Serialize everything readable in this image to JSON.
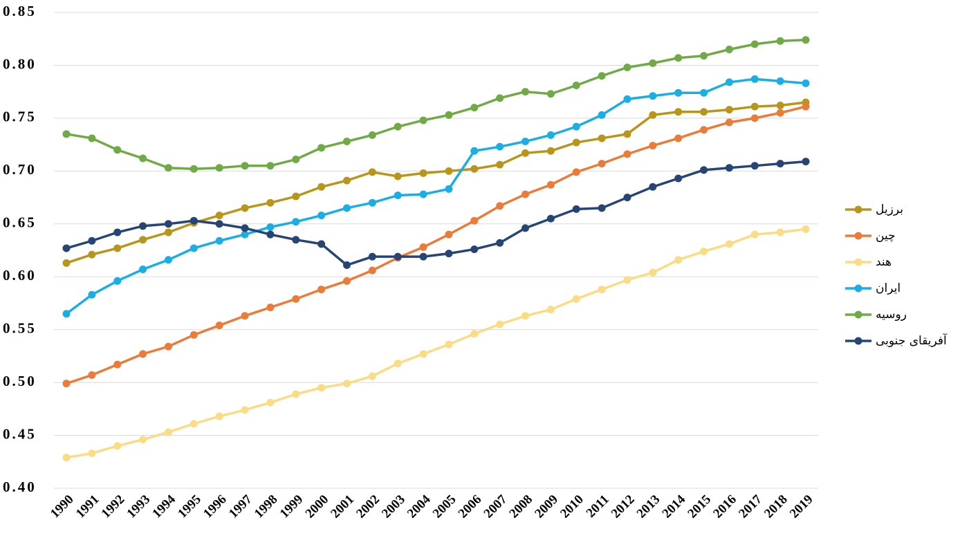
{
  "chart_data": {
    "type": "line",
    "x": [
      "1990",
      "1991",
      "1992",
      "1993",
      "1994",
      "1995",
      "1996",
      "1997",
      "1998",
      "1999",
      "2000",
      "2001",
      "2002",
      "2003",
      "2004",
      "2005",
      "2006",
      "2007",
      "2008",
      "2009",
      "2010",
      "2011",
      "2012",
      "2013",
      "2014",
      "2015",
      "2016",
      "2017",
      "2018",
      "2019"
    ],
    "ylim": [
      0.4,
      0.85
    ],
    "yticks": [
      {
        "value": 0.4,
        "label": "0.40"
      },
      0.45,
      {
        "value": 0.5,
        "label": "0.50"
      },
      0.55,
      {
        "value": 0.6,
        "label": "0.60"
      },
      0.65,
      {
        "value": 0.7,
        "label": "0.70"
      },
      0.75,
      {
        "value": 0.8,
        "label": "0.80"
      },
      0.85
    ],
    "grid": true,
    "legend": "right",
    "series": [
      {
        "name": "برزیل",
        "color": "#b8961b",
        "values": [
          0.613,
          0.621,
          0.627,
          0.635,
          0.642,
          0.651,
          0.658,
          0.665,
          0.67,
          0.676,
          0.685,
          0.691,
          0.699,
          0.695,
          0.698,
          0.7,
          0.702,
          0.706,
          0.717,
          0.719,
          0.727,
          0.731,
          0.735,
          0.753,
          0.756,
          0.756,
          0.758,
          0.761,
          0.762,
          0.765
        ]
      },
      {
        "name": "چین",
        "color": "#ea7c39",
        "values": [
          0.499,
          0.507,
          0.517,
          0.527,
          0.534,
          0.545,
          0.554,
          0.563,
          0.571,
          0.579,
          0.588,
          0.596,
          0.606,
          0.618,
          0.628,
          0.64,
          0.653,
          0.667,
          0.678,
          0.687,
          0.699,
          0.707,
          0.716,
          0.724,
          0.731,
          0.739,
          0.746,
          0.75,
          0.755,
          0.761
        ]
      },
      {
        "name": "هند",
        "color": "#f9dc84",
        "values": [
          0.429,
          0.433,
          0.44,
          0.446,
          0.453,
          0.461,
          0.468,
          0.474,
          0.481,
          0.489,
          0.495,
          0.499,
          0.506,
          0.518,
          0.527,
          0.536,
          0.546,
          0.555,
          0.563,
          0.569,
          0.579,
          0.588,
          0.597,
          0.604,
          0.616,
          0.624,
          0.631,
          0.64,
          0.642,
          0.645
        ]
      },
      {
        "name": "ایران",
        "color": "#1aaee5",
        "values": [
          0.565,
          0.583,
          0.596,
          0.607,
          0.616,
          0.627,
          0.634,
          0.64,
          0.647,
          0.652,
          0.658,
          0.665,
          0.67,
          0.677,
          0.678,
          0.683,
          0.719,
          0.723,
          0.728,
          0.734,
          0.742,
          0.753,
          0.768,
          0.771,
          0.774,
          0.774,
          0.784,
          0.787,
          0.785,
          0.783
        ]
      },
      {
        "name": "روسیه",
        "color": "#6faa46",
        "values": [
          0.735,
          0.731,
          0.72,
          0.712,
          0.703,
          0.702,
          0.703,
          0.705,
          0.705,
          0.711,
          0.722,
          0.728,
          0.734,
          0.742,
          0.748,
          0.753,
          0.76,
          0.769,
          0.775,
          0.773,
          0.781,
          0.79,
          0.798,
          0.802,
          0.807,
          0.809,
          0.815,
          0.82,
          0.823,
          0.824
        ]
      },
      {
        "name": "آفریقای جنوبی",
        "color": "#264575",
        "values": [
          0.627,
          0.634,
          0.642,
          0.648,
          0.65,
          0.653,
          0.65,
          0.646,
          0.64,
          0.635,
          0.631,
          0.611,
          0.619,
          0.619,
          0.619,
          0.622,
          0.626,
          0.632,
          0.646,
          0.655,
          0.664,
          0.665,
          0.675,
          0.685,
          0.693,
          0.701,
          0.703,
          0.705,
          0.707,
          0.709
        ]
      }
    ]
  }
}
